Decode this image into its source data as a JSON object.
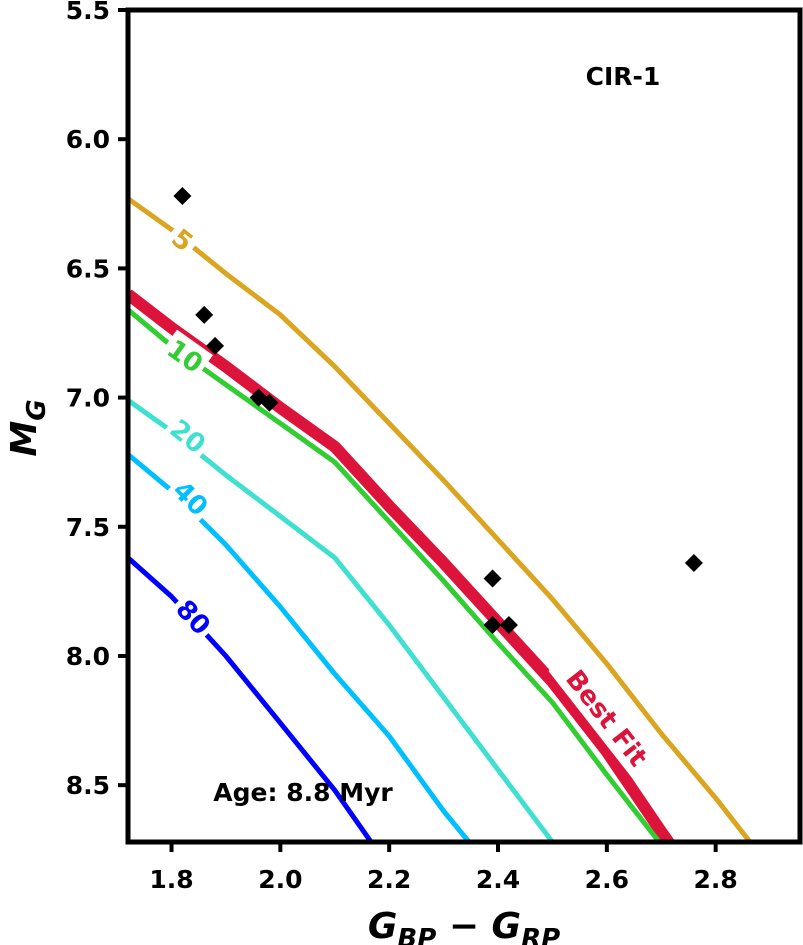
{
  "chart_data": {
    "type": "line",
    "xlabel": {
      "main": "G",
      "sub1": "BP",
      "minus": " − ",
      "sub2": "RP"
    },
    "ylabel": {
      "main": "M",
      "sub": "G"
    },
    "xlim": [
      1.72,
      2.955
    ],
    "ylim": [
      8.72,
      5.5
    ],
    "xticks": [
      1.8,
      2.0,
      2.2,
      2.4,
      2.6,
      2.8
    ],
    "yticks": [
      5.5,
      6.0,
      6.5,
      7.0,
      7.5,
      8.0,
      8.5
    ],
    "xtick_labels": [
      "1.8",
      "2.0",
      "2.2",
      "2.4",
      "2.6",
      "2.8"
    ],
    "ytick_labels": [
      "5.5",
      "6.0",
      "6.5",
      "7.0",
      "7.5",
      "8.0",
      "8.5"
    ],
    "cluster_label": "CIR-1",
    "age_label": "Age: 8.8 Myr",
    "series": [
      {
        "name": "5",
        "label": "5",
        "color": "#DAA520",
        "width": 5,
        "x": [
          1.72,
          1.8,
          1.9,
          2.0,
          2.1,
          2.2,
          2.3,
          2.4,
          2.5,
          2.6,
          2.7,
          2.8,
          2.9,
          2.92
        ],
        "y": [
          6.23,
          6.35,
          6.52,
          6.68,
          6.88,
          7.1,
          7.32,
          7.55,
          7.78,
          8.03,
          8.3,
          8.55,
          8.82,
          8.87
        ],
        "label_at": [
          1.82,
          6.39
        ]
      },
      {
        "name": "Best Fit",
        "label": "Best Fit",
        "color": "#DC143C",
        "width": 12,
        "x": [
          1.72,
          1.8,
          1.9,
          2.0,
          2.1,
          2.2,
          2.3,
          2.4,
          2.5,
          2.6,
          2.7,
          2.72
        ],
        "y": [
          6.6,
          6.73,
          6.88,
          7.04,
          7.19,
          7.42,
          7.64,
          7.87,
          8.1,
          8.37,
          8.68,
          8.74
        ],
        "label_at": [
          2.6,
          8.24
        ]
      },
      {
        "name": "10",
        "label": "10",
        "color": "#32CD32",
        "width": 5,
        "x": [
          1.72,
          1.8,
          1.9,
          2.0,
          2.1,
          2.2,
          2.3,
          2.4,
          2.5,
          2.6,
          2.7,
          2.72
        ],
        "y": [
          6.66,
          6.8,
          6.95,
          7.1,
          7.25,
          7.48,
          7.71,
          7.95,
          8.18,
          8.46,
          8.73,
          8.76
        ],
        "label_at": [
          1.825,
          6.84
        ]
      },
      {
        "name": "20",
        "label": "20",
        "color": "#40E0D0",
        "width": 5,
        "x": [
          1.72,
          1.8,
          1.9,
          2.0,
          2.1,
          2.2,
          2.3,
          2.4,
          2.5,
          2.55
        ],
        "y": [
          7.01,
          7.13,
          7.3,
          7.46,
          7.62,
          7.88,
          8.16,
          8.44,
          8.72,
          8.78
        ],
        "label_at": [
          1.83,
          7.15
        ]
      },
      {
        "name": "40",
        "label": "40",
        "color": "#00BFFF",
        "width": 5,
        "x": [
          1.72,
          1.8,
          1.9,
          2.0,
          2.1,
          2.2,
          2.3,
          2.37
        ],
        "y": [
          7.22,
          7.36,
          7.57,
          7.81,
          8.07,
          8.31,
          8.6,
          8.78
        ],
        "label_at": [
          1.835,
          7.39
        ]
      },
      {
        "name": "80",
        "label": "80",
        "color": "#0000FF",
        "width": 5,
        "x": [
          1.72,
          1.8,
          1.9,
          2.0,
          2.1,
          2.17
        ],
        "y": [
          7.62,
          7.77,
          8.0,
          8.26,
          8.52,
          8.73
        ],
        "label_at": [
          1.84,
          7.85
        ]
      }
    ],
    "points": {
      "name": "CIR-1 members",
      "marker": "diamond",
      "color": "#000000",
      "x": [
        1.82,
        1.86,
        1.88,
        1.96,
        1.98,
        2.39,
        2.39,
        2.42,
        2.76
      ],
      "y": [
        6.22,
        6.68,
        6.8,
        7.0,
        7.02,
        7.7,
        7.88,
        7.88,
        7.64
      ]
    }
  }
}
